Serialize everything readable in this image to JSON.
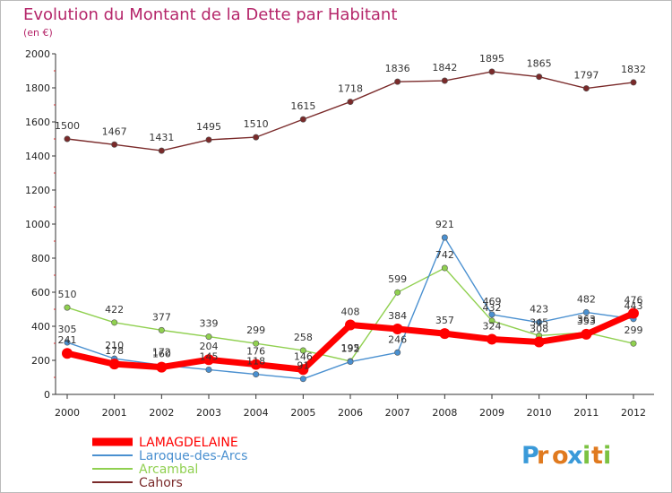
{
  "chart_data": {
    "type": "line",
    "title": "Evolution du Montant de la Dette par Habitant",
    "subtitle": "(en €)",
    "xlabel": "",
    "ylabel": "",
    "x": [
      "2000",
      "2001",
      "2002",
      "2003",
      "2004",
      "2005",
      "2006",
      "2007",
      "2008",
      "2009",
      "2010",
      "2011",
      "2012"
    ],
    "ylim": [
      0,
      2000
    ],
    "yticks": [
      "0",
      "200",
      "400",
      "600",
      "800",
      "1000",
      "1200",
      "1400",
      "1600",
      "1800",
      "2000"
    ],
    "grid": false,
    "legend_position": "bottom-left",
    "series": [
      {
        "name": "LAMAGDELAINE",
        "color": "#ff0000",
        "values": [
          241,
          178,
          160,
          204,
          176,
          146,
          408,
          384,
          357,
          324,
          308,
          353,
          476
        ],
        "labels": [
          "241",
          "178",
          "160",
          "204",
          "176",
          "146",
          "408",
          "384",
          "357",
          "324",
          "308",
          "353",
          "476"
        ]
      },
      {
        "name": "Laroque-des-Arcs",
        "color": "#4a90d0",
        "values": [
          305,
          210,
          172,
          145,
          118,
          91,
          192,
          246,
          921,
          469,
          423,
          482,
          443
        ],
        "labels": [
          "305",
          "210",
          "172",
          "145",
          "118",
          "91",
          "192",
          "246",
          "921",
          "469",
          "423",
          "482",
          "443"
        ]
      },
      {
        "name": "Arcambal",
        "color": "#90d050",
        "values": [
          510,
          422,
          377,
          339,
          299,
          258,
          195,
          599,
          742,
          432,
          345,
          363,
          299
        ],
        "labels": [
          "510",
          "422",
          "377",
          "339",
          "299",
          "258",
          "195",
          "599",
          "742",
          "432",
          "345",
          "363",
          "299"
        ]
      },
      {
        "name": "Cahors",
        "color": "#7a2a2a",
        "values": [
          1500,
          1467,
          1431,
          1495,
          1510,
          1615,
          1718,
          1836,
          1842,
          1895,
          1865,
          1797,
          1832
        ],
        "labels": [
          "1500",
          "1467",
          "1431",
          "1495",
          "1510",
          "1615",
          "1718",
          "1836",
          "1842",
          "1895",
          "1865",
          "1797",
          "1832"
        ]
      }
    ]
  },
  "brand": {
    "letters": [
      "P",
      "r",
      "o",
      "x",
      "i",
      "t",
      "i"
    ],
    "colors": [
      "#3a9ad9",
      "#e07a1f",
      "#e07a1f",
      "#3a9ad9",
      "#7cc242",
      "#e07a1f",
      "#7cc242"
    ]
  }
}
